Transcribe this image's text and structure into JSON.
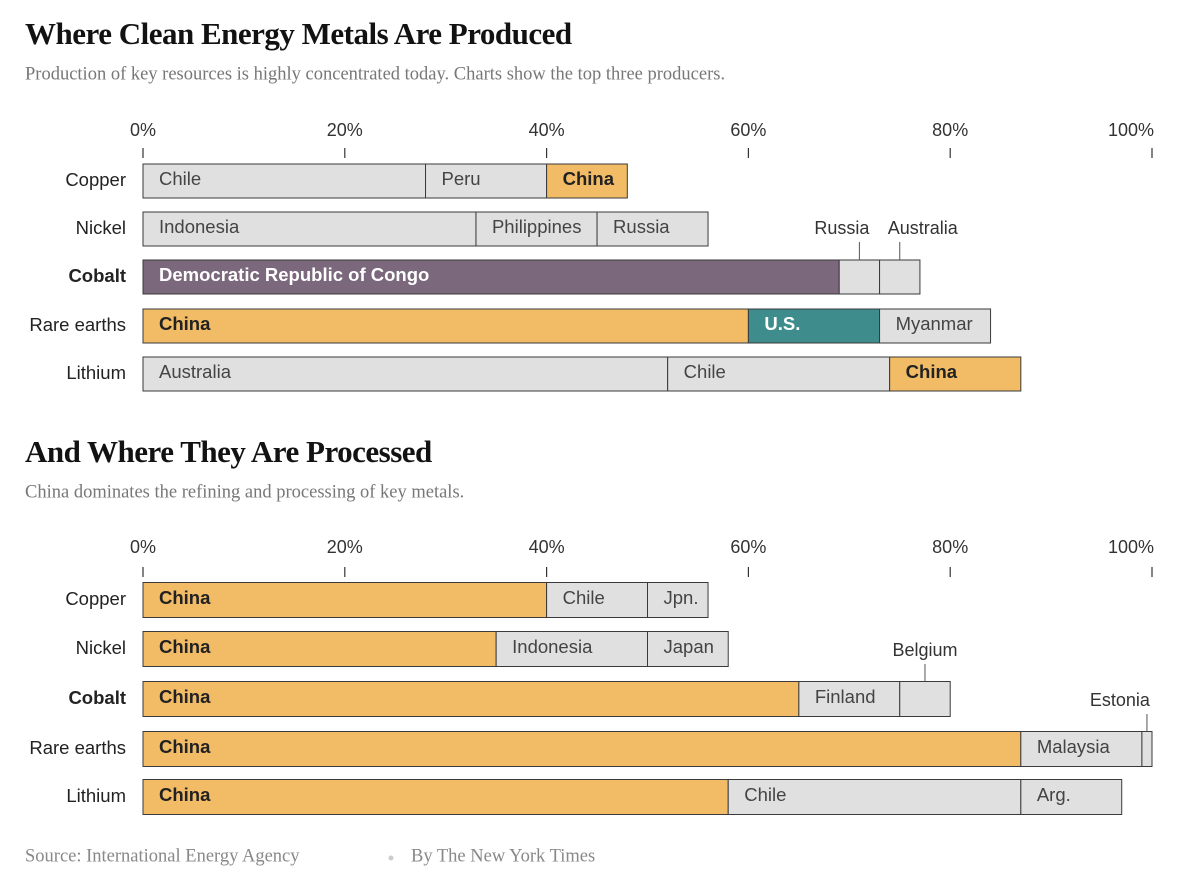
{
  "chart_data": [
    {
      "type": "stacked_bar",
      "title": "Where Clean Energy Metals Are Produced",
      "subtitle": "Production of key resources is highly concentrated today. Charts show the top three producers.",
      "xlim": [
        0,
        100
      ],
      "xticks": [
        {
          "value": 0,
          "label": "0%"
        },
        {
          "value": 20,
          "label": "20%"
        },
        {
          "value": 40,
          "label": "40%"
        },
        {
          "value": 60,
          "label": "60%"
        },
        {
          "value": 80,
          "label": "80%"
        },
        {
          "value": 100,
          "label": "100%"
        }
      ],
      "bars": [
        {
          "category": "Copper",
          "segments": [
            {
              "name": "Chile",
              "value": 28,
              "color": "#e0e0e0"
            },
            {
              "name": "Peru",
              "value": 12,
              "color": "#e0e0e0"
            },
            {
              "name": "China",
              "value": 8,
              "color": "#f2bb66"
            }
          ]
        },
        {
          "category": "Nickel",
          "segments": [
            {
              "name": "Indonesia",
              "value": 33,
              "color": "#e0e0e0"
            },
            {
              "name": "Philippines",
              "value": 12,
              "color": "#e0e0e0"
            },
            {
              "name": "Russia",
              "value": 11,
              "color": "#e0e0e0"
            }
          ]
        },
        {
          "category": "Cobalt",
          "bold": true,
          "segments": [
            {
              "name": "Democratic Republic of Congo",
              "value": 69,
              "color": "#7b687c"
            },
            {
              "name": "Russia",
              "value": 4,
              "color": "#e0e0e0",
              "callout": true
            },
            {
              "name": "Australia",
              "value": 4,
              "color": "#e0e0e0",
              "callout": true
            }
          ]
        },
        {
          "category": "Rare earths",
          "segments": [
            {
              "name": "China",
              "value": 60,
              "color": "#f2bb66"
            },
            {
              "name": "U.S.",
              "value": 13,
              "color": "#3f8c8c"
            },
            {
              "name": "Myanmar",
              "value": 11,
              "color": "#e0e0e0"
            }
          ]
        },
        {
          "category": "Lithium",
          "segments": [
            {
              "name": "Australia",
              "value": 52,
              "color": "#e0e0e0"
            },
            {
              "name": "Chile",
              "value": 22,
              "color": "#e0e0e0"
            },
            {
              "name": "China",
              "value": 13,
              "color": "#f2bb66"
            }
          ]
        }
      ]
    },
    {
      "type": "stacked_bar",
      "title": "And Where They Are Processed",
      "subtitle": "China dominates the refining and processing of key metals.",
      "xlim": [
        0,
        100
      ],
      "xticks": [
        {
          "value": 0,
          "label": "0%"
        },
        {
          "value": 20,
          "label": "20%"
        },
        {
          "value": 40,
          "label": "40%"
        },
        {
          "value": 60,
          "label": "60%"
        },
        {
          "value": 80,
          "label": "80%"
        },
        {
          "value": 100,
          "label": "100%"
        }
      ],
      "bars": [
        {
          "category": "Copper",
          "segments": [
            {
              "name": "China",
              "value": 40,
              "color": "#f2bb66"
            },
            {
              "name": "Chile",
              "value": 10,
              "color": "#e0e0e0"
            },
            {
              "name": "Jpn.",
              "value": 6,
              "color": "#e0e0e0"
            }
          ]
        },
        {
          "category": "Nickel",
          "segments": [
            {
              "name": "China",
              "value": 35,
              "color": "#f2bb66"
            },
            {
              "name": "Indonesia",
              "value": 15,
              "color": "#e0e0e0"
            },
            {
              "name": "Japan",
              "value": 8,
              "color": "#e0e0e0"
            }
          ]
        },
        {
          "category": "Cobalt",
          "bold": true,
          "segments": [
            {
              "name": "China",
              "value": 65,
              "color": "#f2bb66"
            },
            {
              "name": "Finland",
              "value": 10,
              "color": "#e0e0e0"
            },
            {
              "name": "Belgium",
              "value": 5,
              "color": "#e0e0e0",
              "callout": true
            }
          ]
        },
        {
          "category": "Rare earths",
          "segments": [
            {
              "name": "China",
              "value": 87,
              "color": "#f2bb66"
            },
            {
              "name": "Malaysia",
              "value": 12,
              "color": "#e0e0e0"
            },
            {
              "name": "Estonia",
              "value": 1,
              "color": "#e0e0e0",
              "callout": true
            }
          ]
        },
        {
          "category": "Lithium",
          "segments": [
            {
              "name": "China",
              "value": 58,
              "color": "#f2bb66"
            },
            {
              "name": "Chile",
              "value": 29,
              "color": "#e0e0e0"
            },
            {
              "name": "Arg.",
              "value": 10,
              "color": "#e0e0e0"
            }
          ]
        }
      ]
    }
  ],
  "footer": {
    "source": "Source: International Energy Agency",
    "credit": "By The New York Times"
  }
}
